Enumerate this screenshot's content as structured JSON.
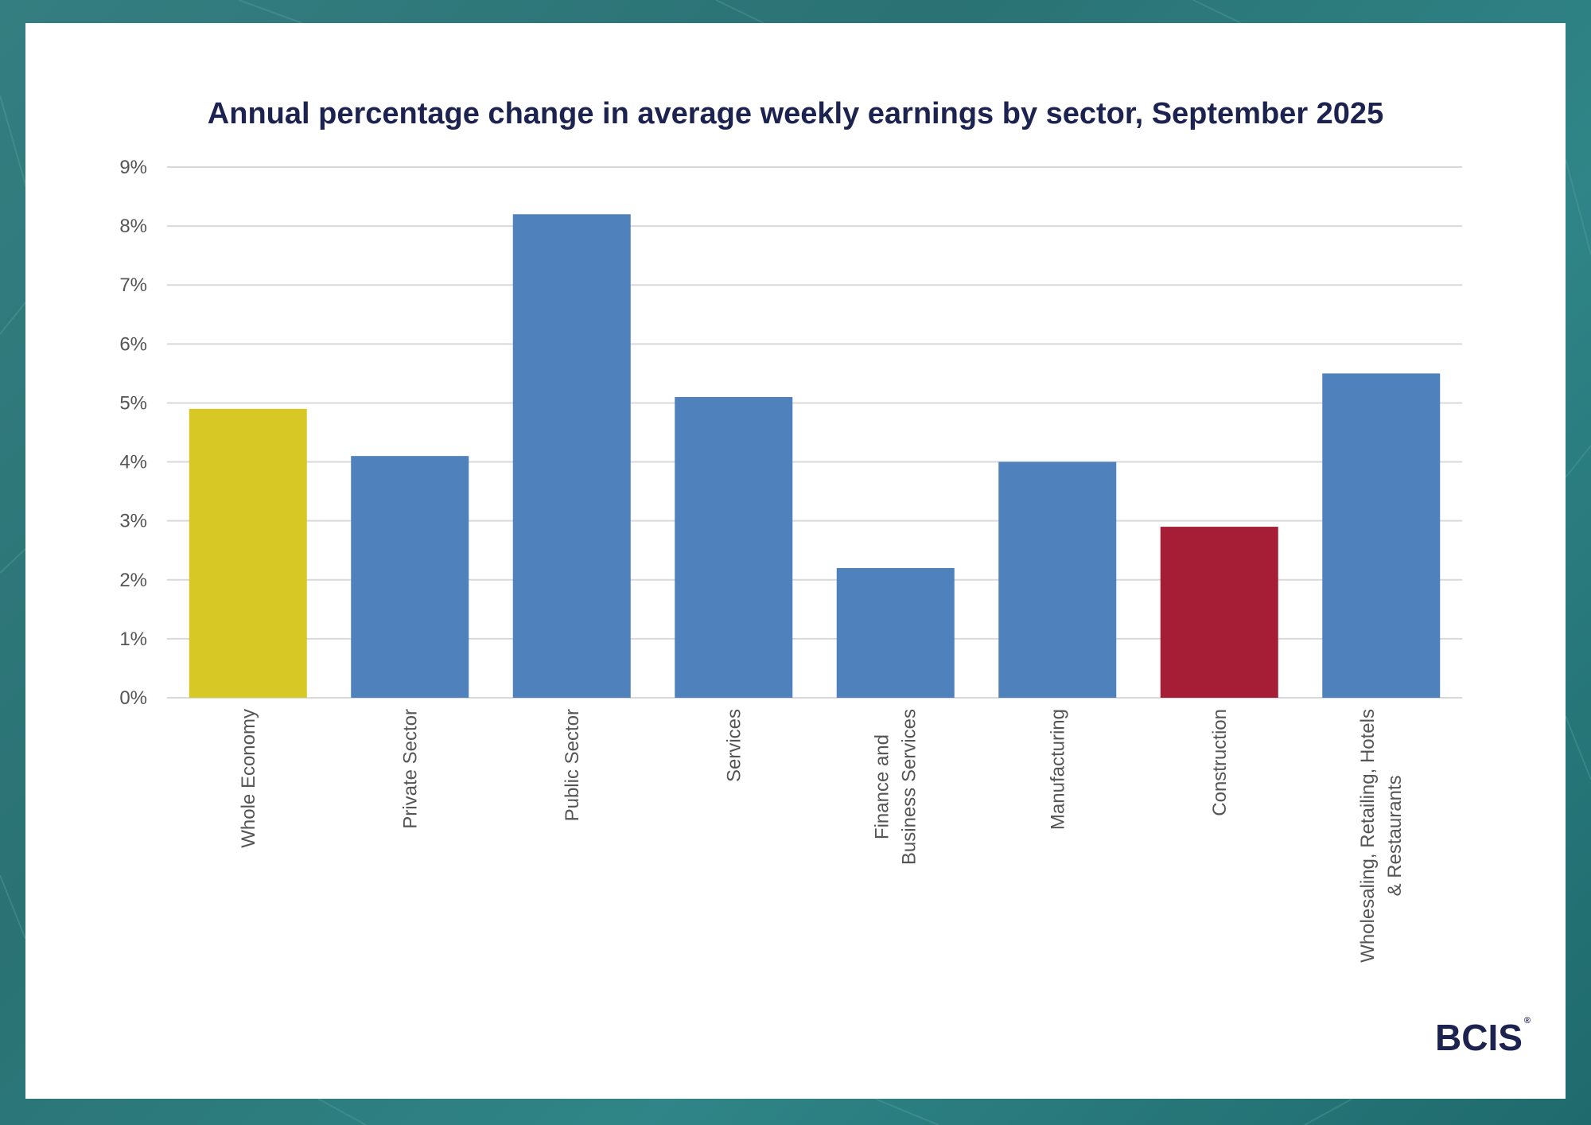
{
  "brand": {
    "logo_text": "BCIS",
    "logo_mark": "®"
  },
  "colors": {
    "background": "#2b7f80",
    "title": "#1d2351",
    "whole_economy": "#d8c826",
    "sector": "#4f81bd",
    "construction": "#a51e36"
  },
  "chart_data": {
    "type": "bar",
    "title": "Annual percentage change in average weekly earnings by sector, September 2025",
    "xlabel": "",
    "ylabel": "",
    "ylim": [
      0,
      9
    ],
    "yticks": [
      "0%",
      "1%",
      "2%",
      "3%",
      "4%",
      "5%",
      "6%",
      "7%",
      "8%",
      "9%"
    ],
    "grid": true,
    "categories": [
      [
        "Whole Economy"
      ],
      [
        "Private Sector"
      ],
      [
        "Public Sector"
      ],
      [
        "Services"
      ],
      [
        "Finance and",
        "Business Services"
      ],
      [
        "Manufacturing"
      ],
      [
        "Construction"
      ],
      [
        "Wholesaling, Retailing, Hotels",
        "& Restaurants"
      ]
    ],
    "values": [
      4.9,
      4.1,
      8.2,
      5.1,
      2.2,
      4.0,
      2.9,
      5.5
    ],
    "bar_colors": [
      "#d8c826",
      "#4f81bd",
      "#4f81bd",
      "#4f81bd",
      "#4f81bd",
      "#4f81bd",
      "#a51e36",
      "#4f81bd"
    ]
  }
}
